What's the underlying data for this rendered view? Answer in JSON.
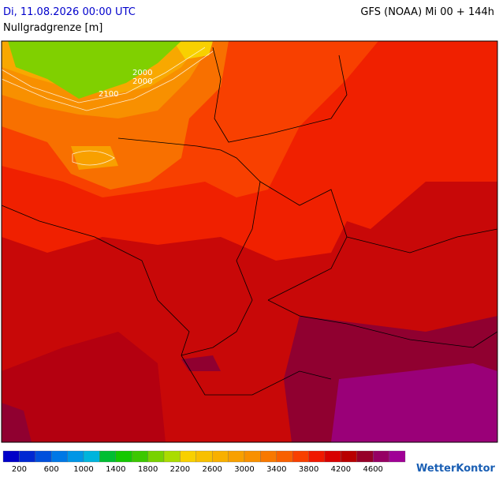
{
  "header": {
    "date": "Di, 11.08.2026 00:00 UTC",
    "model": "GFS (NOAA) Mi 00 + 144h",
    "subtitle": "Nullgradgrenze [m]"
  },
  "map": {
    "contour_labels": [
      "2000",
      "2000",
      "2100"
    ]
  },
  "legend": {
    "colors": [
      "#0000c8",
      "#0028d2",
      "#0050dc",
      "#0078e6",
      "#0096e6",
      "#00b4dc",
      "#00be32",
      "#14c800",
      "#3cc800",
      "#78d200",
      "#aadc00",
      "#f8d000",
      "#f8c000",
      "#f8b000",
      "#f8a000",
      "#f89000",
      "#f87800",
      "#f86000",
      "#f84000",
      "#f01800",
      "#d80000",
      "#b80000",
      "#960028",
      "#960064",
      "#a00096"
    ],
    "labels": [
      200,
      600,
      1000,
      1400,
      1800,
      2200,
      2600,
      3000,
      3400,
      3800,
      4200,
      4600
    ]
  },
  "brand": "WetterKontor"
}
